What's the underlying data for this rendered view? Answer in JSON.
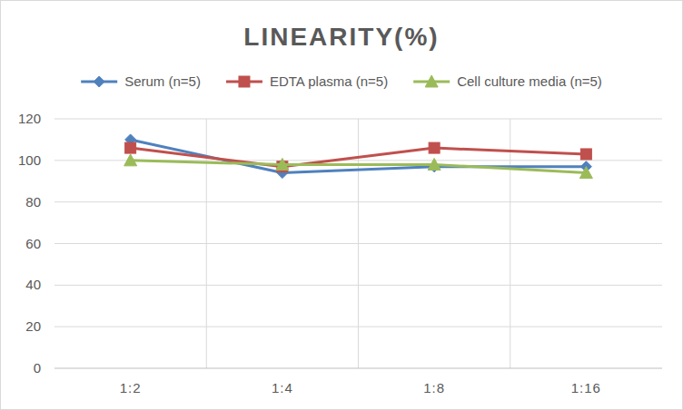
{
  "chart_data": {
    "type": "line",
    "title": "LINEARITY(%)",
    "categories": [
      "1:2",
      "1:4",
      "1:8",
      "1:16"
    ],
    "series": [
      {
        "name": "Serum (n=5)",
        "color": "#4f81bd",
        "marker": "diamond",
        "values": [
          110,
          94,
          97,
          97
        ]
      },
      {
        "name": "EDTA plasma (n=5)",
        "color": "#c0504d",
        "marker": "square",
        "values": [
          106,
          97,
          106,
          103
        ]
      },
      {
        "name": "Cell culture media (n=5)",
        "color": "#9bbb59",
        "marker": "triangle",
        "values": [
          100,
          98,
          98,
          94
        ]
      }
    ],
    "ylim": [
      0,
      120
    ],
    "yticks": [
      0,
      20,
      40,
      60,
      80,
      100,
      120
    ],
    "grid": true,
    "legend": "top"
  }
}
